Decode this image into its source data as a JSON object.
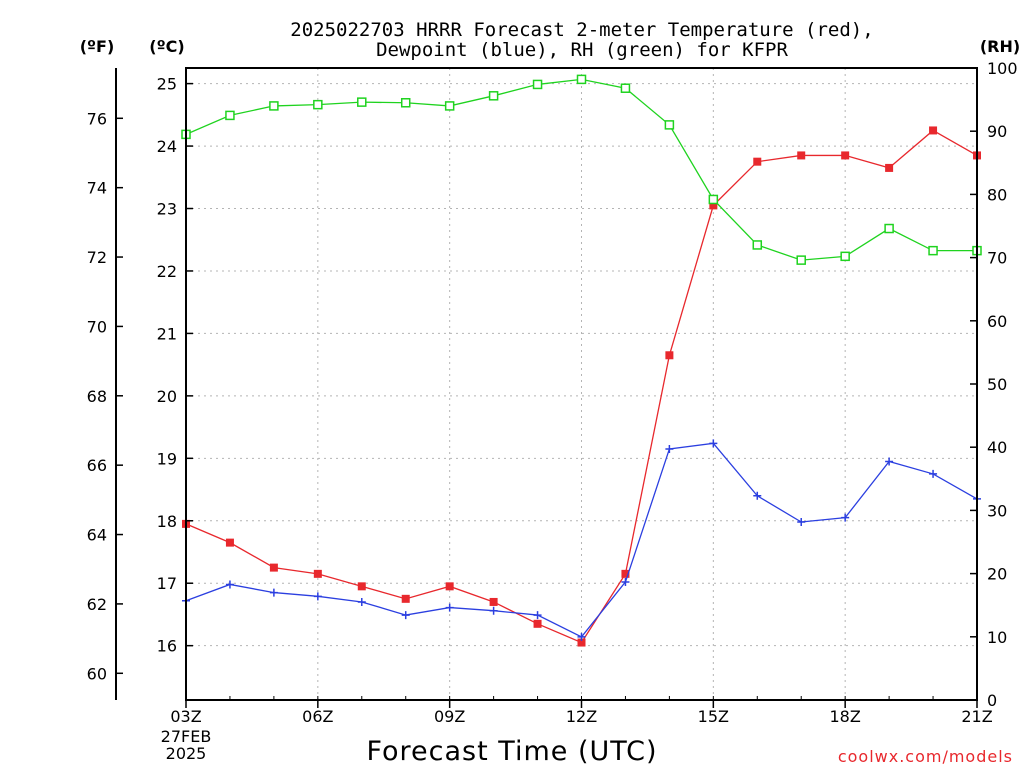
{
  "chart_data": {
    "type": "line",
    "title": "2025022703 HRRR Forecast 2-meter Temperature (red),",
    "subtitle": "Dewpoint (blue), RH (green) for KFPR",
    "xlabel": "Forecast Time (UTC)",
    "watermark": "coolwx.com/models",
    "left_unit_f": "(ºF)",
    "left_unit_c": "(ºC)",
    "right_unit": "(RH)",
    "x_tick_labels": [
      "03Z",
      "06Z",
      "09Z",
      "12Z",
      "15Z",
      "18Z",
      "21Z"
    ],
    "x_date_label": "27FEB",
    "x_year_label": "2025",
    "x_hours": [
      3,
      4,
      5,
      6,
      7,
      8,
      9,
      10,
      11,
      12,
      13,
      14,
      15,
      16,
      17,
      18,
      19,
      20,
      21
    ],
    "xlim": [
      3,
      21
    ],
    "celsius_axis": {
      "ylim": [
        15.13,
        25.25
      ],
      "ticks": [
        16,
        17,
        18,
        19,
        20,
        21,
        22,
        23,
        24,
        25
      ]
    },
    "fahrenheit_axis": {
      "ylim": [
        59.23,
        77.45
      ],
      "ticks": [
        60,
        62,
        64,
        66,
        68,
        70,
        72,
        74,
        76
      ]
    },
    "rh_axis": {
      "ylim": [
        0,
        100
      ],
      "ticks": [
        0,
        10,
        20,
        30,
        40,
        50,
        60,
        70,
        80,
        90,
        100
      ]
    },
    "grid": true,
    "series": [
      {
        "name": "Temperature",
        "axis": "celsius",
        "color": "#e8282d",
        "marker": "filled-square",
        "values": [
          17.95,
          17.65,
          17.25,
          17.15,
          16.95,
          16.75,
          16.95,
          16.7,
          16.35,
          16.05,
          17.15,
          20.65,
          23.05,
          23.75,
          23.85,
          23.85,
          23.65,
          24.25,
          23.85
        ]
      },
      {
        "name": "Dewpoint",
        "axis": "celsius",
        "color": "#2b3fe0",
        "marker": "plus",
        "values": [
          16.72,
          16.98,
          16.85,
          16.79,
          16.7,
          16.49,
          16.61,
          16.56,
          16.49,
          16.14,
          17.02,
          19.15,
          19.24,
          18.4,
          17.98,
          18.05,
          18.95,
          18.75,
          18.35
        ]
      },
      {
        "name": "RH",
        "axis": "rh",
        "color": "#1fd31f",
        "marker": "open-square",
        "values": [
          89.5,
          92.5,
          94.0,
          94.2,
          94.6,
          94.5,
          94.0,
          95.6,
          97.4,
          98.2,
          96.8,
          91.0,
          79.2,
          72.0,
          69.6,
          70.2,
          74.6,
          71.1,
          71.1
        ]
      }
    ]
  }
}
